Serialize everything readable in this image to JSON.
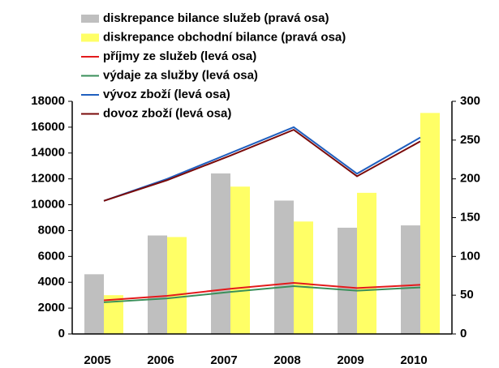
{
  "chart_data": {
    "type": "bar",
    "categories": [
      "2005",
      "2006",
      "2007",
      "2008",
      "2009",
      "2010"
    ],
    "series": [
      {
        "name": "diskrepance bilance služeb (pravá osa)",
        "type": "bar",
        "axis": "y2",
        "color": "#bfbfbf",
        "values": [
          77,
          127,
          207,
          172,
          137,
          140
        ]
      },
      {
        "name": "diskrepance obchodní bilance (pravá osa)",
        "type": "bar",
        "axis": "y2",
        "color": "#ffff66",
        "values": [
          50,
          125,
          190,
          145,
          182,
          285
        ]
      },
      {
        "name": "příjmy ze služeb (levá osa)",
        "type": "line",
        "color": "#e31a1c",
        "values": [
          2600,
          2950,
          3500,
          3950,
          3550,
          3800
        ]
      },
      {
        "name": "výdaje za služby (levá osa)",
        "type": "line",
        "color": "#3a8f5a",
        "values": [
          2450,
          2750,
          3250,
          3700,
          3350,
          3600
        ]
      },
      {
        "name": "vývoz zboží (levá osa)",
        "type": "line",
        "color": "#1f5fbf",
        "values": [
          10300,
          12000,
          14000,
          16000,
          12400,
          15200
        ]
      },
      {
        "name": "dovoz zboží (levá osa)",
        "type": "line",
        "color": "#7a0a0a",
        "values": [
          10300,
          11900,
          13800,
          15800,
          12200,
          14900
        ]
      }
    ],
    "ylim": [
      0,
      18000
    ],
    "yticks": [
      0,
      2000,
      4000,
      6000,
      8000,
      10000,
      12000,
      14000,
      16000,
      18000
    ],
    "y2lim": [
      0,
      300
    ],
    "y2ticks": [
      0,
      50,
      100,
      150,
      200,
      250,
      300
    ],
    "grid": false,
    "legend": "top-left"
  }
}
